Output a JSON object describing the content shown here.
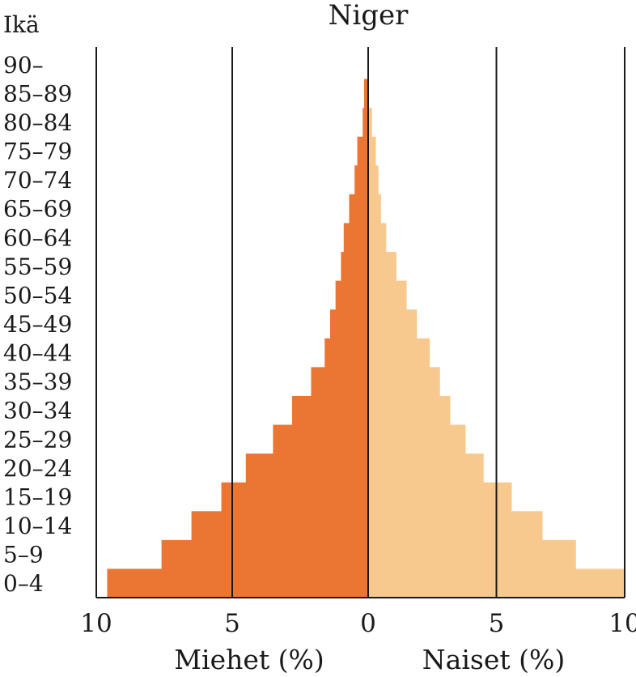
{
  "chart_data": {
    "type": "bar",
    "orientation": "horizontal-population-pyramid",
    "title": "Niger",
    "y_axis_title": "Ikä",
    "categories": [
      "0–4",
      "5–9",
      "10–14",
      "15–19",
      "20–24",
      "25–29",
      "30–34",
      "35–39",
      "40–44",
      "45–49",
      "50–54",
      "55–59",
      "60–64",
      "65–69",
      "70–74",
      "75–79",
      "80–84",
      "85–89",
      "90–"
    ],
    "series": [
      {
        "name": "Miehet (%)",
        "side": "left",
        "color": "#EB7634",
        "values": [
          9.6,
          7.6,
          6.5,
          5.4,
          4.5,
          3.5,
          2.8,
          2.1,
          1.6,
          1.4,
          1.2,
          1.0,
          0.9,
          0.7,
          0.5,
          0.4,
          0.2,
          0.15,
          0.0
        ]
      },
      {
        "name": "Naiset (%)",
        "side": "right",
        "color": "#F8C98E",
        "values": [
          10.0,
          8.1,
          6.8,
          5.6,
          4.5,
          3.8,
          3.2,
          2.8,
          2.4,
          1.9,
          1.5,
          1.1,
          0.7,
          0.5,
          0.4,
          0.3,
          0.15,
          0.0,
          0.0
        ]
      }
    ],
    "x_ticks": [
      "10",
      "5",
      "0",
      "5",
      "10"
    ],
    "x_tick_values": [
      -10,
      -5,
      0,
      5,
      10
    ],
    "xlim": [
      -10,
      10
    ],
    "xlabel_left": "Miehet (%)",
    "xlabel_right": "Naiset (%)",
    "grid": "vertical lines at 10, 5, 0, 5, 10",
    "line_color": "#1a1a1a"
  }
}
